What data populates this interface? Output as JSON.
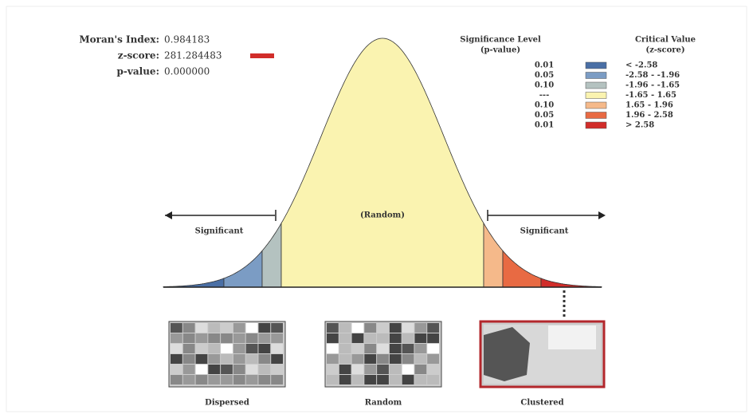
{
  "stats": [
    {
      "label": "Moran's Index:",
      "value": "0.984183"
    },
    {
      "label": "z-score:",
      "value": "281.284483"
    },
    {
      "label": "p-value:",
      "value": "0.000000"
    }
  ],
  "legend": {
    "p_header": [
      "Significance Level",
      "(p-value)"
    ],
    "z_header": [
      "Critical Value",
      "(z-score)"
    ],
    "rows": [
      {
        "p": "0.01",
        "z": "< -2.58",
        "color": "#4a6fa5"
      },
      {
        "p": "0.05",
        "z": "-2.58 - -1.96",
        "color": "#7b9cc4"
      },
      {
        "p": "0.10",
        "z": "-1.96 - -1.65",
        "color": "#b4c2c0"
      },
      {
        "p": "---",
        "z": "-1.65 - 1.65",
        "color": "#faf3b0"
      },
      {
        "p": "0.10",
        "z": "1.65 - 1.96",
        "color": "#f5b98a"
      },
      {
        "p": "0.05",
        "z": "1.96 - 2.58",
        "color": "#e86a43"
      },
      {
        "p": "0.01",
        "z": "> 2.58",
        "color": "#d12d2a"
      }
    ]
  },
  "curve": {
    "left": "Significant",
    "center": "(Random)",
    "right": "Significant"
  },
  "patterns": [
    "Dispersed",
    "Random",
    "Clustered"
  ]
}
